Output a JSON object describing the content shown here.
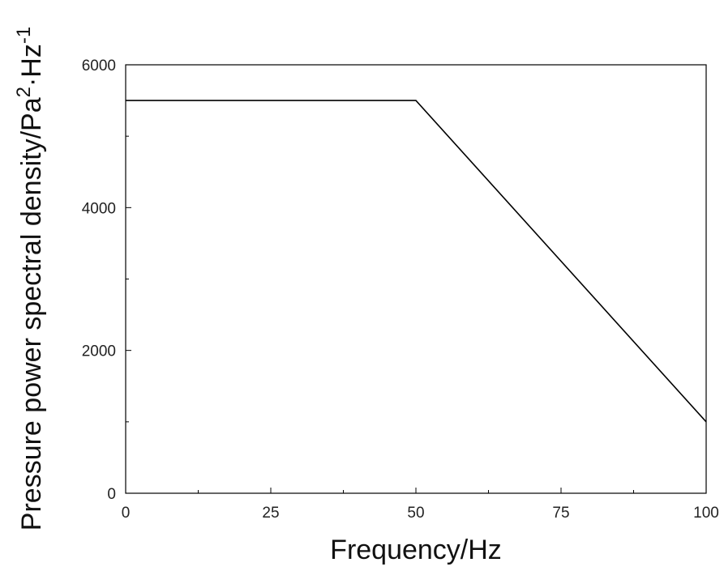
{
  "chart_data": {
    "type": "line",
    "title": "",
    "xlabel": "Frequency/Hz",
    "ylabel": {
      "base": "Pressure power spectral density/Pa",
      "sup1": "2",
      "mid": "·Hz",
      "sup2": "-1"
    },
    "xlim": [
      0,
      100
    ],
    "ylim": [
      0,
      6000
    ],
    "xticks": [
      0,
      25,
      50,
      75,
      100
    ],
    "yticks": [
      0,
      2000,
      4000,
      6000
    ],
    "x_minor_step": 12.5,
    "y_minor_step": 1000,
    "grid": false,
    "legend": "none",
    "line_color": "#000000",
    "series": [
      {
        "x": [
          0,
          50,
          100
        ],
        "y": [
          5500,
          5500,
          1000
        ]
      }
    ]
  }
}
